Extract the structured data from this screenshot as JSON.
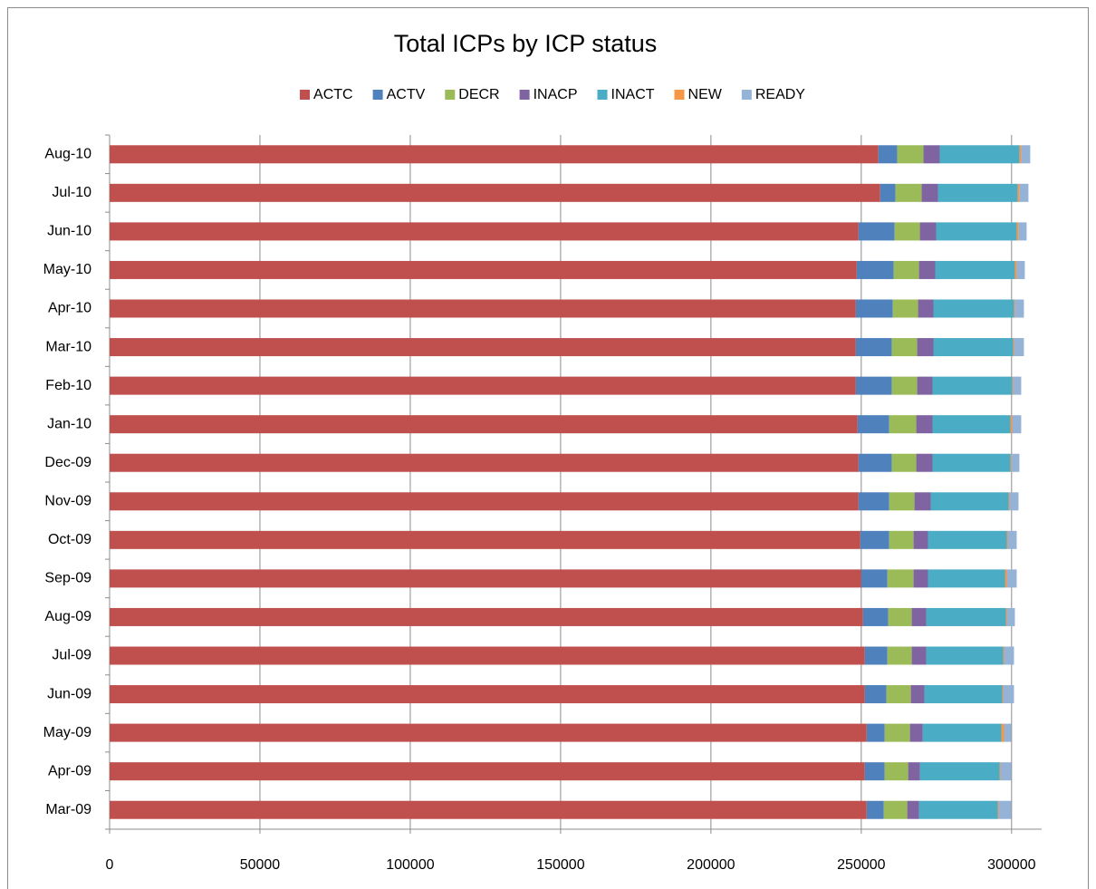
{
  "chart_data": {
    "type": "stacked_barh",
    "title": "Total ICPs by ICP status",
    "categories": [
      "Mar-09",
      "Apr-09",
      "May-09",
      "Jun-09",
      "Jul-09",
      "Aug-09",
      "Sep-09",
      "Oct-09",
      "Nov-09",
      "Dec-09",
      "Jan-10",
      "Feb-10",
      "Mar-10",
      "Apr-10",
      "May-10",
      "Jun-10",
      "Jul-10",
      "Aug-10"
    ],
    "series": [
      {
        "name": "ACTC",
        "color": "#c0504d",
        "values": [
          251800,
          251200,
          251800,
          251200,
          251200,
          250600,
          250000,
          249700,
          249100,
          249100,
          248800,
          248200,
          248200,
          248200,
          248500,
          249100,
          256300,
          255700
        ]
      },
      {
        "name": "ACTV",
        "color": "#4f81bd",
        "values": [
          5700,
          6600,
          6000,
          7200,
          7500,
          8400,
          8700,
          9600,
          10200,
          11100,
          10500,
          12000,
          12000,
          12300,
          12300,
          12000,
          5100,
          6300
        ]
      },
      {
        "name": "DECR",
        "color": "#9bbb59",
        "values": [
          7800,
          7800,
          8400,
          8100,
          8100,
          7800,
          8700,
          8100,
          8400,
          8100,
          9000,
          8400,
          8400,
          8400,
          8400,
          8400,
          8700,
          8700
        ]
      },
      {
        "name": "INACP",
        "color": "#8064a2",
        "values": [
          3900,
          3900,
          4200,
          4500,
          4800,
          4800,
          4800,
          4800,
          5400,
          5400,
          5400,
          5100,
          5400,
          5100,
          5400,
          5400,
          5400,
          5400
        ]
      },
      {
        "name": "INACT",
        "color": "#4bacc6",
        "values": [
          26200,
          26500,
          26200,
          25900,
          25600,
          26500,
          25600,
          26200,
          25900,
          25900,
          25900,
          26500,
          26500,
          26800,
          26500,
          26800,
          26500,
          26500
        ]
      },
      {
        "name": "NEW",
        "color": "#f79646",
        "values": [
          300,
          300,
          900,
          300,
          300,
          300,
          600,
          300,
          300,
          300,
          600,
          300,
          300,
          300,
          600,
          600,
          600,
          600
        ]
      },
      {
        "name": "READY",
        "color": "#95b3d7",
        "values": [
          4200,
          3600,
          2400,
          3600,
          3300,
          2700,
          3300,
          3000,
          3000,
          2700,
          3000,
          2700,
          3300,
          3000,
          2700,
          2700,
          3000,
          3000
        ]
      }
    ],
    "xlim": [
      0,
      310000
    ],
    "xticks": [
      0,
      50000,
      100000,
      150000,
      200000,
      250000,
      300000
    ],
    "grid": true,
    "legend": "top"
  }
}
